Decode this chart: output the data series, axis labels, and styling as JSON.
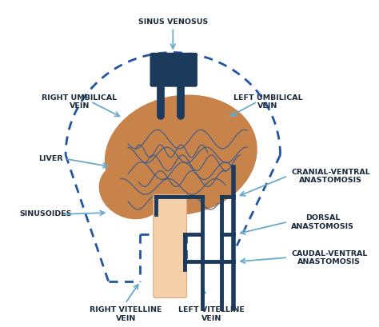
{
  "bg_color": "#ffffff",
  "liver_color": "#c8834a",
  "sinus_color": "#1b3a5c",
  "dotted_color": "#2255a0",
  "sinusoid_color": "#3a5a8a",
  "portal_color": "#f5cfa8",
  "arrow_color": "#6aabcc",
  "font_color": "#1a2a3a",
  "font_size": 6.8,
  "labels": {
    "sinus_venosus": "SINUS VENOSUS",
    "right_umbilical": "RIGHT UMBILICAL\nVEIN",
    "left_umbilical": "LEFT UMBILICAL\nVEIN",
    "liver": "LIVER",
    "sinusoides": "SINUSOIDES",
    "cranial_ventral": "CRANIAL-VENTRAL\nANASTOMOSIS",
    "dorsal": "DORSAL\nANASTOMOSIS",
    "caudal_ventral": "CAUDAL-VENTRAL\nANASTOMOSIS",
    "right_vitelline": "RIGHT VITELLINE\nVEIN",
    "left_vitelline": "LEFT VITELLINE\nVEIN"
  }
}
